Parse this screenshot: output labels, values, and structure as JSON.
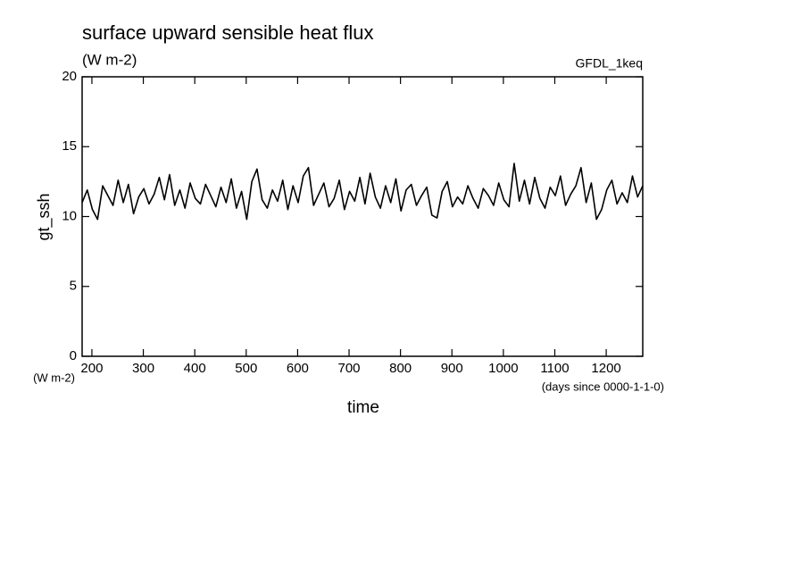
{
  "chart_data": {
    "type": "line",
    "title": "surface upward sensible heat flux",
    "subtitle": "(W m-2)",
    "annotation": "GFDL_1keq",
    "y_label": "gt_ssh",
    "y_unit": "(W m-2)",
    "x_label": "time",
    "x_unit": "(days since 0000-1-1-0)",
    "color": "#000000",
    "x": [
      181,
      191,
      201,
      211,
      221,
      231,
      241,
      251,
      261,
      271,
      281,
      291,
      301,
      311,
      321,
      331,
      341,
      351,
      361,
      371,
      381,
      391,
      401,
      411,
      421,
      431,
      441,
      451,
      461,
      471,
      481,
      491,
      501,
      511,
      521,
      531,
      541,
      551,
      561,
      571,
      581,
      591,
      601,
      611,
      621,
      631,
      641,
      651,
      661,
      671,
      681,
      691,
      701,
      711,
      721,
      731,
      741,
      751,
      761,
      771,
      781,
      791,
      801,
      811,
      821,
      831,
      841,
      851,
      861,
      871,
      881,
      891,
      901,
      911,
      921,
      931,
      941,
      951,
      961,
      971,
      981,
      991,
      1001,
      1011,
      1021,
      1031,
      1041,
      1051,
      1061,
      1071,
      1081,
      1091,
      1101,
      1111,
      1121,
      1131,
      1141,
      1151,
      1161,
      1171,
      1181,
      1191,
      1201,
      1211,
      1221,
      1231,
      1241,
      1251,
      1261,
      1271
    ],
    "values": [
      11.0,
      11.9,
      10.5,
      9.8,
      12.2,
      11.5,
      10.8,
      12.6,
      11.0,
      12.3,
      10.2,
      11.4,
      12.0,
      10.9,
      11.6,
      12.8,
      11.2,
      13.0,
      10.8,
      11.9,
      10.6,
      12.4,
      11.3,
      10.9,
      12.3,
      11.5,
      10.7,
      12.1,
      11.0,
      12.7,
      10.6,
      11.8,
      9.8,
      12.5,
      13.4,
      11.2,
      10.6,
      11.9,
      11.1,
      12.6,
      10.5,
      12.2,
      11.0,
      12.9,
      13.5,
      10.8,
      11.6,
      12.4,
      10.7,
      11.3,
      12.6,
      10.5,
      11.8,
      11.1,
      12.8,
      10.9,
      13.1,
      11.4,
      10.6,
      12.2,
      11.0,
      12.7,
      10.4,
      11.9,
      12.3,
      10.8,
      11.5,
      12.1,
      10.1,
      9.9,
      11.8,
      12.5,
      10.7,
      11.4,
      10.9,
      12.2,
      11.3,
      10.6,
      12.0,
      11.5,
      10.8,
      12.4,
      11.2,
      10.7,
      13.8,
      11.1,
      12.6,
      10.9,
      12.8,
      11.3,
      10.6,
      12.1,
      11.5,
      12.9,
      10.8,
      11.6,
      12.2,
      13.5,
      11.0,
      12.4,
      9.8,
      10.5,
      11.9,
      12.6,
      10.9,
      11.7,
      11.0,
      12.9,
      11.4,
      12.2
    ],
    "xlim": [
      181,
      1271
    ],
    "ylim": [
      0,
      20
    ],
    "xticks": [
      200,
      300,
      400,
      500,
      600,
      700,
      800,
      900,
      1000,
      1100,
      1200
    ],
    "yticks": [
      0,
      5,
      10,
      15,
      20
    ]
  }
}
